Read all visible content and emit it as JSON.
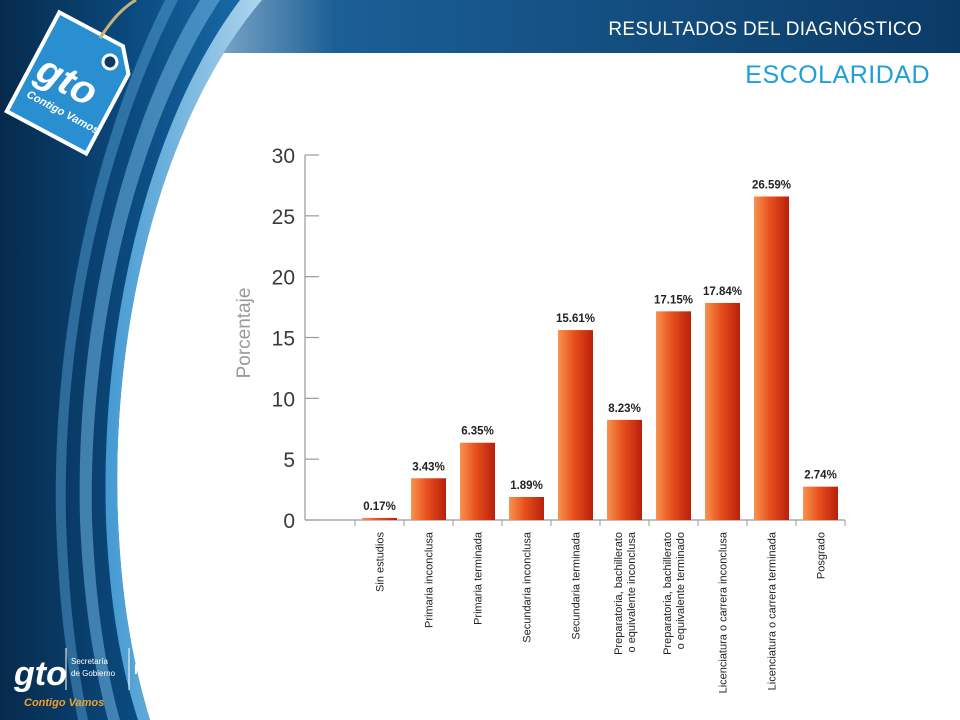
{
  "header": {
    "title": "RESULTADOS DEL DIAGNÓSTICO",
    "subtitle": "ESCOLARIDAD"
  },
  "branding": {
    "tag_logo": "gto",
    "tag_slogan": "Contigo Vamos",
    "footer_logo": "gto",
    "footer_slogan": "Contigo Vamos",
    "footer_org_line1": "Secretaría",
    "footer_org_line2": "de Gobierno",
    "footer_org2": "IMUG"
  },
  "colors": {
    "dark_blue": "#0b3a66",
    "mid_blue": "#1a6fae",
    "accent_blue": "#1e9fd8",
    "bar_light": "#f47a3c",
    "bar_dark": "#c8260d"
  },
  "chart_data": {
    "type": "bar",
    "title": "",
    "xlabel": "",
    "ylabel": "Porcentaje",
    "ylim": [
      0,
      30
    ],
    "yticks": [
      0,
      5,
      10,
      15,
      20,
      25,
      30
    ],
    "grid": false,
    "categories": [
      [
        "Sin estudios"
      ],
      [
        "Primaria inconclusa"
      ],
      [
        "Primaria terminada"
      ],
      [
        "Secundaria inconclusa"
      ],
      [
        "Secundaria terminada"
      ],
      [
        "Preparatoria, bachillerato",
        "o equivalente inconclusa"
      ],
      [
        "Preparatoria, bachillerato",
        "o equivalente terminado"
      ],
      [
        "Licenciatura o carrera inconclusa"
      ],
      [
        "Licenciatura o carrera terminada"
      ],
      [
        "Posgrado"
      ]
    ],
    "values": [
      0.17,
      3.43,
      6.35,
      1.89,
      15.61,
      8.23,
      17.15,
      17.84,
      26.59,
      2.74
    ],
    "value_labels": [
      "0.17%",
      "3.43%",
      "6.35%",
      "1.89%",
      "15.61%",
      "8.23%",
      "17.15%",
      "17.84%",
      "26.59%",
      "2.74%"
    ]
  }
}
